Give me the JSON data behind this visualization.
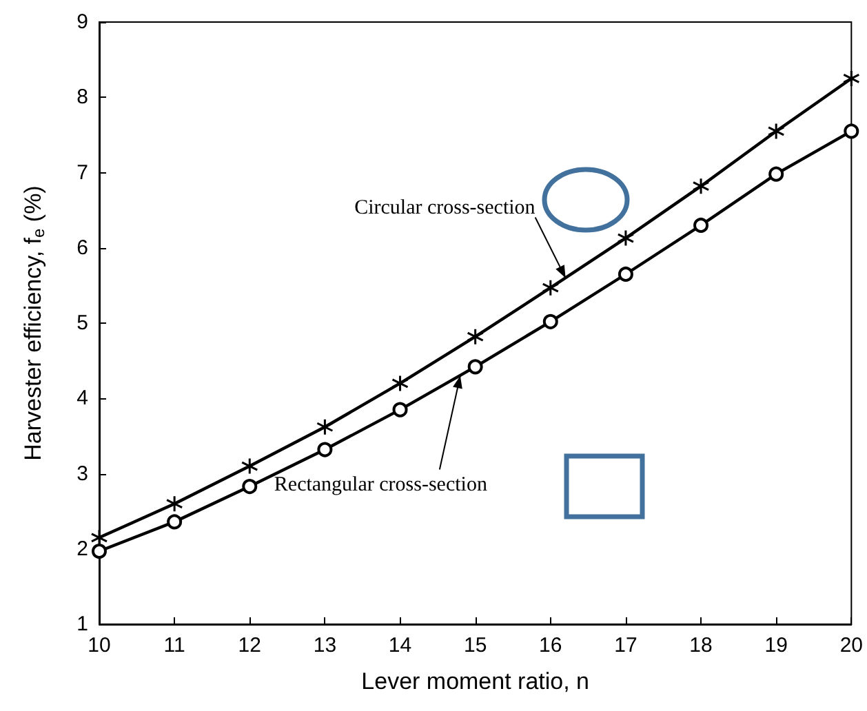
{
  "chart_data": {
    "type": "line",
    "xlabel": "Lever moment ratio, n",
    "ylabel": "Harvester efficiency, f$_{e}$ (%)",
    "x": [
      10,
      11,
      12,
      13,
      14,
      15,
      16,
      17,
      18,
      19,
      20
    ],
    "series": [
      {
        "color": "#000000",
        "marker": "cross",
        "values": [
          2.15,
          2.6,
          3.1,
          3.62,
          4.2,
          4.82,
          5.47,
          6.13,
          6.82,
          7.55,
          8.25
        ]
      },
      {
        "color": "#000000",
        "marker": "circle",
        "values": [
          1.97,
          2.36,
          2.83,
          3.32,
          3.85,
          4.42,
          5.02,
          5.65,
          6.3,
          6.98,
          7.55
        ]
      }
    ],
    "annotations": [
      {
        "text": "Circular cross-section",
        "x": 16.2,
        "y": 5.6
      },
      {
        "text": "Rectangular cross-section",
        "x": 14.8,
        "y": 4.3
      }
    ],
    "xlim": [
      10,
      20
    ],
    "xticks": [
      10,
      11,
      12,
      13,
      14,
      15,
      16,
      17,
      18,
      19,
      20
    ],
    "ylim": [
      1,
      9
    ],
    "yticks": [
      1,
      2,
      3,
      4,
      5,
      6,
      7,
      8,
      9
    ],
    "grid": false,
    "line_style": "solid"
  }
}
